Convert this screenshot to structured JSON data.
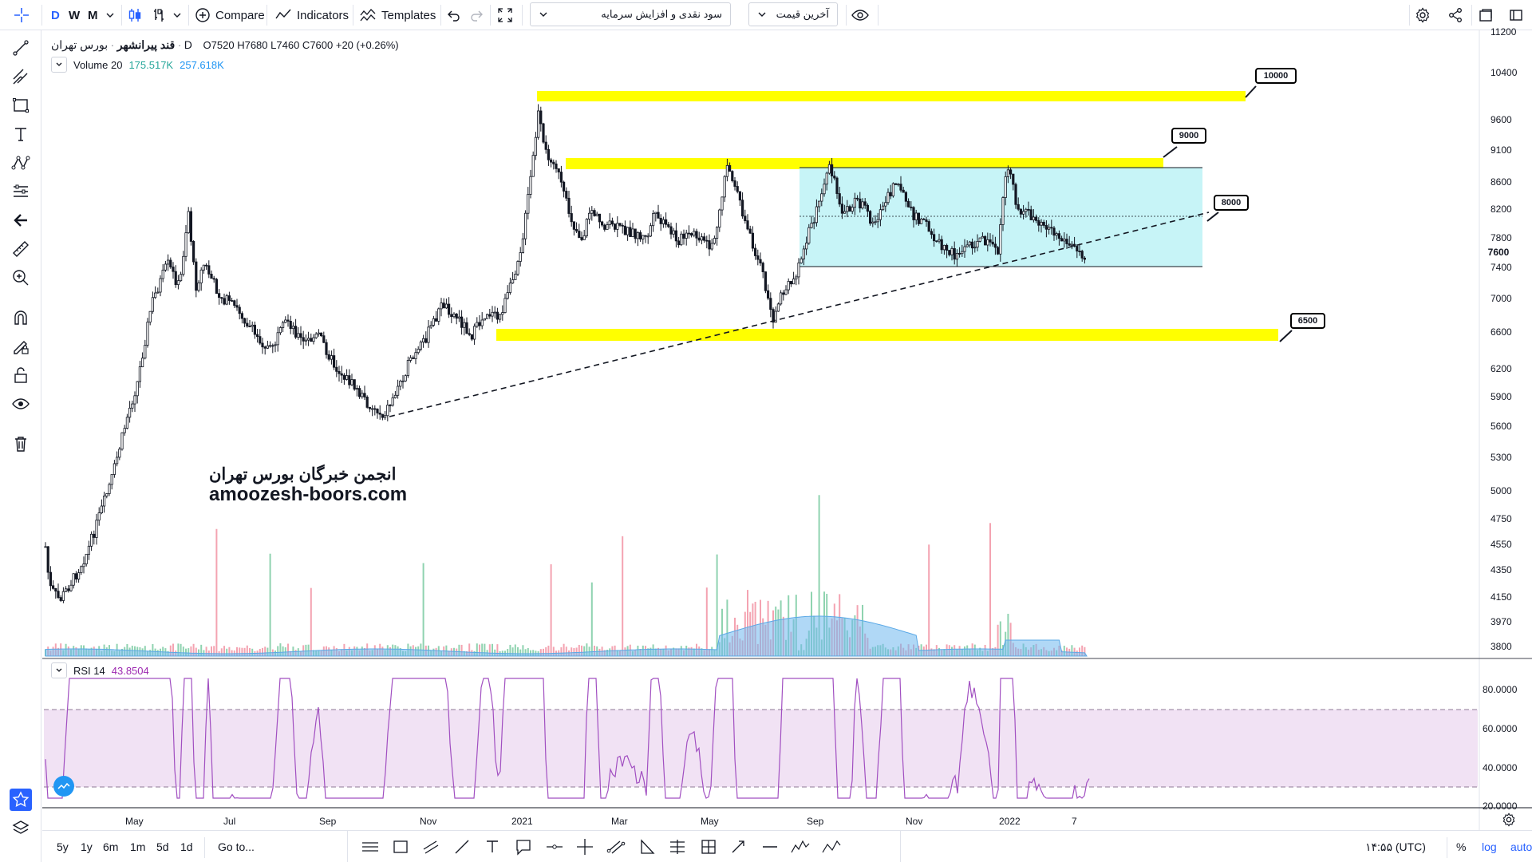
{
  "toolbar": {
    "intervals": [
      "D",
      "W",
      "M"
    ],
    "active_interval": "D",
    "compare_label": "Compare",
    "indicators_label": "Indicators",
    "templates_label": "Templates",
    "symbol_search_value": "سود نقدی و افزایش سرمایه",
    "price_type_value": "آخرین قیمت"
  },
  "legend": {
    "symbol_name": "قند پیرانشهر",
    "exchange": "بورس تهران",
    "interval": "D",
    "open_label": "O",
    "open": "7520",
    "high_label": "H",
    "high": "7680",
    "low_label": "L",
    "low": "7460",
    "close_label": "C",
    "close": "7600",
    "change": "+20 (+0.26%)",
    "volume_label": "Volume 20",
    "volume_value1": "175.517K",
    "volume_value2": "257.618K",
    "rsi_label": "RSI 14",
    "rsi_value": "43.8504"
  },
  "price_axis": [
    "11200",
    "10400",
    "9600",
    "9100",
    "8600",
    "8200",
    "7800",
    "7600",
    "7400",
    "7000",
    "6600",
    "6200",
    "5900",
    "5600",
    "5300",
    "5000",
    "4750",
    "4550",
    "4350",
    "4150",
    "3970",
    "3800"
  ],
  "current_price": "7600",
  "rsi_axis": [
    "80.0000",
    "60.0000",
    "40.0000",
    "20.0000"
  ],
  "time_axis": [
    "May",
    "Jul",
    "Sep",
    "Nov",
    "2021",
    "Mar",
    "May",
    "Sep",
    "Nov",
    "2022",
    "7"
  ],
  "callouts": [
    "10000",
    "9000",
    "8000",
    "6500"
  ],
  "watermark": {
    "line1": "انجمن خبرگان بورس تهران",
    "line2": "amoozesh-boors.com"
  },
  "bottom": {
    "ranges": [
      "5y",
      "1y",
      "6m",
      "1m",
      "5d",
      "1d"
    ],
    "goto_label": "Go to...",
    "clock": "۱۴:۵۵ (UTC)",
    "percent_label": "%",
    "log_label": "log",
    "auto_label": "auto"
  },
  "colors": {
    "accent": "#2962ff",
    "zone_yellow": "#ffff00",
    "range_box": "#bdf2f6",
    "rsi_line": "#9c27b0",
    "rsi_band": "#f1e2f4",
    "volume_up": "#8fd3b0",
    "volume_down": "#f4a3b1",
    "volume_ma": "#70b8ee"
  }
}
